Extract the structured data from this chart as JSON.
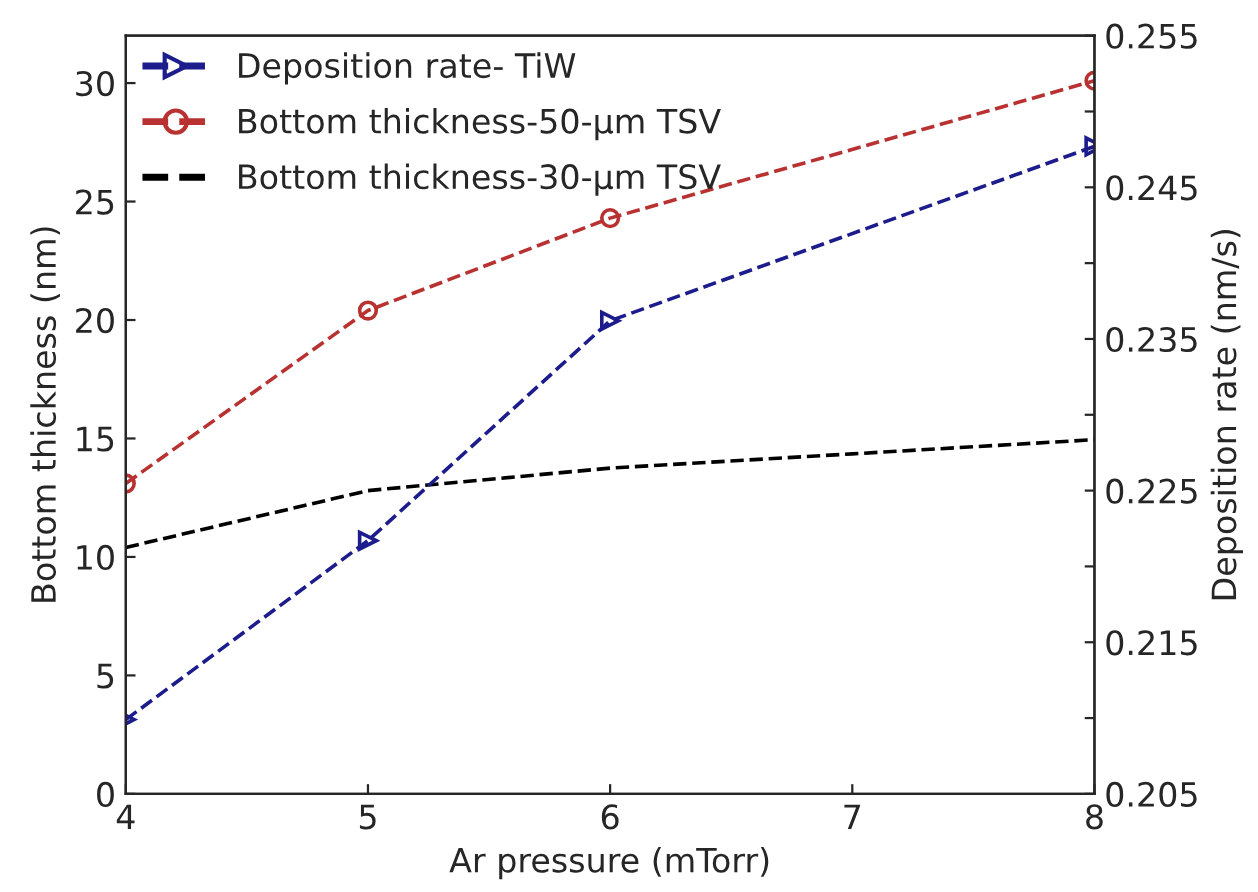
{
  "chart_data": {
    "type": "line",
    "xlabel": "Ar pressure (mTorr)",
    "ylabel": "Bottom thickness (nm)",
    "y2label": "Deposition rate (nm/s)",
    "x": [
      4,
      5,
      6,
      8
    ],
    "series": [
      {
        "name": "Deposition rate- TiW",
        "color": "#1c1c8c",
        "axis": "y2",
        "marker": "triangle",
        "line_style": "dashed",
        "values": [
          0.2099,
          0.2217,
          0.2362,
          0.2477
        ]
      },
      {
        "name": "Bottom thickness-50-μm TSV",
        "color": "#b83232",
        "marker": "circle",
        "line_style": "dashed",
        "values": [
          13.1,
          20.4,
          24.3,
          30.1
        ]
      },
      {
        "name": "Bottom thickness-30-μm TSV",
        "color": "#000000",
        "marker": "none",
        "line_style": "dashed",
        "x": [
          4,
          5,
          6,
          7,
          8
        ],
        "values": [
          10.4,
          12.8,
          13.75,
          14.35,
          14.95
        ]
      }
    ],
    "xlim": [
      4,
      8
    ],
    "xticks": [
      4,
      5,
      6,
      7,
      8
    ],
    "ylim": [
      0,
      32
    ],
    "yticks": [
      0,
      5,
      10,
      15,
      20,
      25,
      30
    ],
    "y2lim": [
      0.205,
      0.255
    ],
    "y2ticks": [
      0.205,
      {
        "value": 0.21,
        "label": null
      },
      0.215,
      {
        "value": 0.22,
        "label": null
      },
      0.225,
      {
        "value": 0.23,
        "label": null
      },
      0.235,
      {
        "value": 0.24,
        "label": null
      },
      0.245,
      {
        "value": 0.25,
        "label": null
      },
      0.255
    ],
    "grid": false,
    "legend": "top left"
  }
}
